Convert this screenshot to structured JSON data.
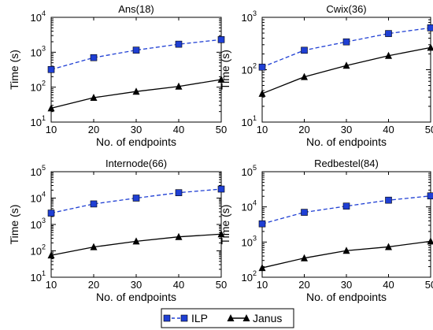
{
  "colors": {
    "ilp": "#1f3fd4",
    "janus": "#000000"
  },
  "legend": {
    "items": [
      {
        "label": "ILP",
        "marker": "square",
        "line": "dashed",
        "color": "#1f3fd4"
      },
      {
        "label": "Janus",
        "marker": "triangle",
        "line": "solid",
        "color": "#000000"
      }
    ]
  },
  "chart_data": [
    {
      "type": "line",
      "title": "Ans(18)",
      "xlabel": "No. of endpoints",
      "ylabel": "Time (s)",
      "x": [
        10,
        20,
        30,
        40,
        50
      ],
      "xlim": [
        10,
        50
      ],
      "xticks": [
        "10",
        "20",
        "30",
        "40",
        "50"
      ],
      "yscale": "log",
      "ylim_exp": [
        1,
        4
      ],
      "series": [
        {
          "name": "ILP",
          "values": [
            320,
            700,
            1150,
            1700,
            2300
          ]
        },
        {
          "name": "Janus",
          "values": [
            25,
            50,
            75,
            105,
            165
          ]
        }
      ]
    },
    {
      "type": "line",
      "title": "Cwix(36)",
      "xlabel": "No. of endpoints",
      "ylabel": "Time (s)",
      "x": [
        10,
        20,
        30,
        40,
        50
      ],
      "xlim": [
        10,
        50
      ],
      "xticks": [
        "10",
        "20",
        "30",
        "40",
        "50"
      ],
      "yscale": "log",
      "ylim_exp": [
        1,
        3
      ],
      "series": [
        {
          "name": "ILP",
          "values": [
            112,
            235,
            340,
            490,
            630
          ]
        },
        {
          "name": "Janus",
          "values": [
            35,
            73,
            120,
            185,
            265
          ]
        }
      ]
    },
    {
      "type": "line",
      "title": "Internode(66)",
      "xlabel": "No. of endpoints",
      "ylabel": "Time (s)",
      "x": [
        10,
        20,
        30,
        40,
        50
      ],
      "xlim": [
        10,
        50
      ],
      "xticks": [
        "10",
        "20",
        "30",
        "40",
        "50"
      ],
      "yscale": "log",
      "ylim_exp": [
        1,
        5
      ],
      "series": [
        {
          "name": "ILP",
          "values": [
            2700,
            6000,
            10000,
            16000,
            22000
          ]
        },
        {
          "name": "Janus",
          "values": [
            68,
            140,
            230,
            340,
            430
          ]
        }
      ]
    },
    {
      "type": "line",
      "title": "Redbestel(84)",
      "xlabel": "No. of endpoints",
      "ylabel": "Time (s)",
      "x": [
        10,
        20,
        30,
        40,
        50
      ],
      "xlim": [
        10,
        50
      ],
      "xticks": [
        "10",
        "20",
        "30",
        "40",
        "50"
      ],
      "yscale": "log",
      "ylim_exp": [
        2,
        5
      ],
      "series": [
        {
          "name": "ILP",
          "values": [
            3300,
            7000,
            10500,
            15500,
            20500
          ]
        },
        {
          "name": "Janus",
          "values": [
            185,
            350,
            570,
            730,
            1050
          ]
        }
      ]
    }
  ]
}
